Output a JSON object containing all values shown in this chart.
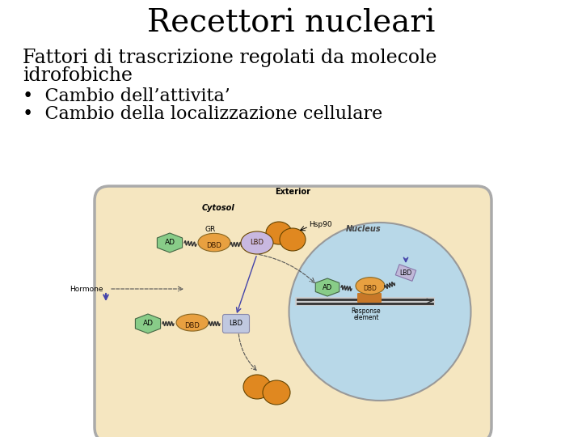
{
  "title": "Recettori nucleari",
  "subtitle_line1": "Fattori di trascrizione regolati da molecole",
  "subtitle_line2": "idrofobiche",
  "bullet1": "Cambio dell’attivita’",
  "bullet2": "Cambio della localizzazione cellulare",
  "bg_color": "#ffffff",
  "title_fontsize": 28,
  "subtitle_fontsize": 17,
  "bullet_fontsize": 16,
  "cell_bg": "#f5e6c0",
  "nucleus_bg": "#b8d8e8",
  "cell_border": "#aaaaaa",
  "ad_color": "#88cc88",
  "dbd_color": "#e8a040",
  "lbd_top_color": "#c8b8e0",
  "lbd_bottom_color": "#c0c8e0",
  "lbd_nucleus_color": "#c0b8d8",
  "hsp90_color": "#e08820",
  "hormone_color": "#e08820",
  "arrow_color": "#555555",
  "hormone_arrow_color": "#4444aa"
}
